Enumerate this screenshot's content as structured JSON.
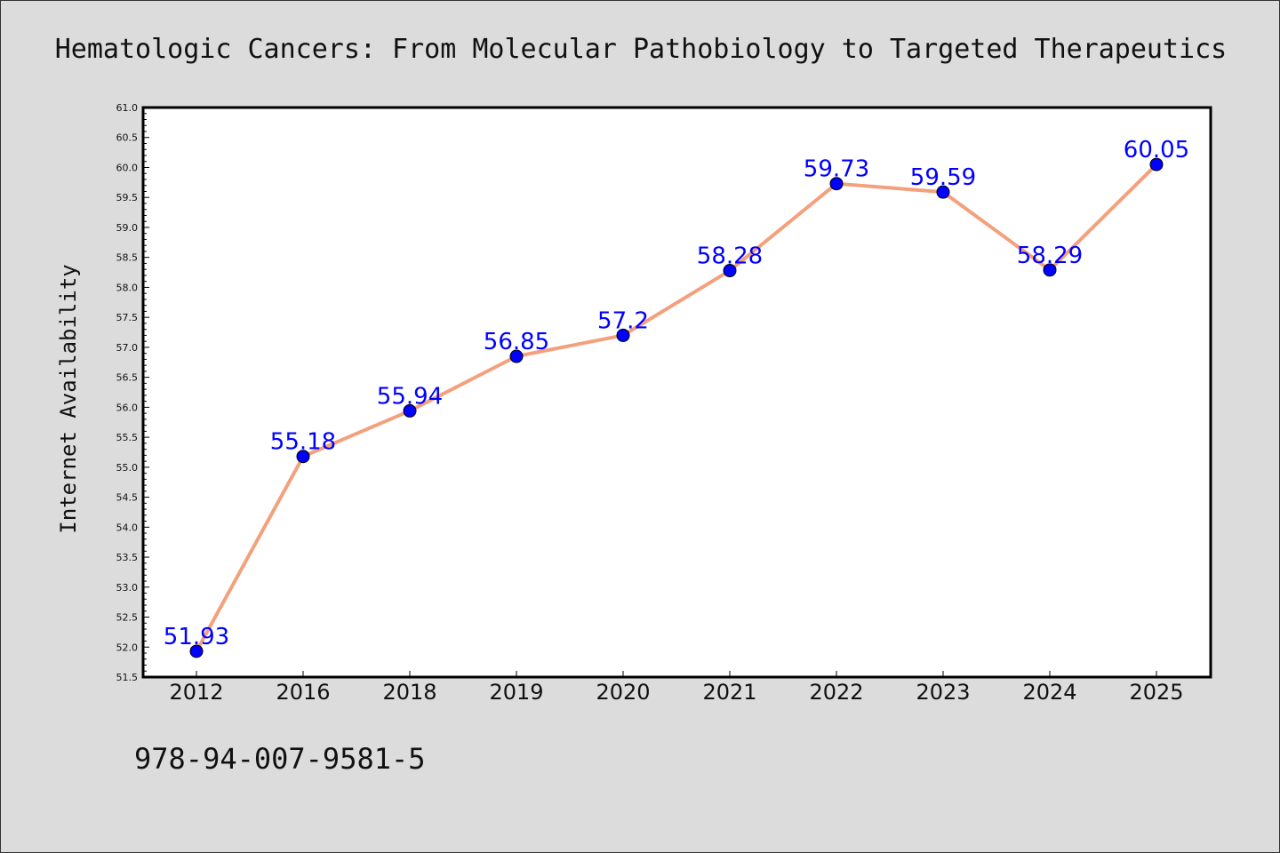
{
  "chart_data": {
    "type": "line",
    "title": "Hematologic Cancers: From Molecular Pathobiology to Targeted Therapeutics",
    "xlabel": "",
    "ylabel": "Internet Availability",
    "categories": [
      "2012",
      "2016",
      "2018",
      "2019",
      "2020",
      "2021",
      "2022",
      "2023",
      "2024",
      "2025"
    ],
    "series": [
      {
        "values": [
          51.93,
          55.18,
          55.94,
          56.85,
          57.2,
          58.28,
          59.73,
          59.59,
          58.29,
          60.05
        ],
        "point_labels": [
          "51.93",
          "55.18",
          "55.94",
          "56.85",
          "57.2",
          "58.28",
          "59.73",
          "59.59",
          "58.29",
          "60.05"
        ]
      }
    ],
    "ylim": [
      51.5,
      61.0
    ],
    "yticks": [
      "51.5",
      "52.0",
      "52.5",
      "53.0",
      "53.5",
      "54.0",
      "54.5",
      "55.0",
      "55.5",
      "56.0",
      "56.5",
      "57.0",
      "57.5",
      "58.0",
      "58.5",
      "59.0",
      "59.5",
      "60.0",
      "60.5",
      "61.0"
    ],
    "grid": false,
    "colors": {
      "line": "#f4a07c",
      "marker": "#0000ff",
      "label": "#0000ff",
      "background": "#dcdcdc",
      "plot_background": "#ffffff"
    }
  },
  "footer": {
    "isbn": "978-94-007-9581-5"
  }
}
